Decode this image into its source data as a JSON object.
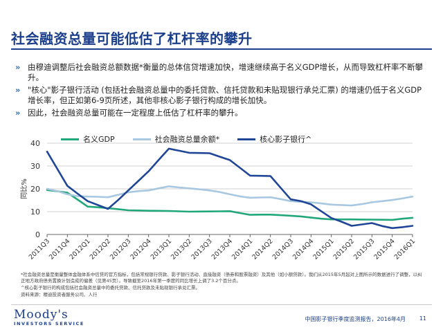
{
  "page": {
    "title": "社会融资总量可能低估了杠杆率的攀升",
    "bullets": [
      "由穆迪调整后社会融资总额数据*衡量的总体信贷增速加快，增速继续高于名义GDP增长，从而导致杠杆率不断攀升。",
      "\"核心\"影子银行活动 (包括社会融资总量中的委托贷款、信托贷款和未贴现银行承兑汇票) 的增速仍低于名义GDP增长率，但正如第6-9页所述，其他非核心影子银行构成的增长加快。",
      "因此，社会融资总量可能在一定程度上低估了杠杆率的攀升。"
    ],
    "bullet_mark": "»",
    "notes": [
      "*社会融资总量是衡量整体金融体系中信贷的官方指标，包括常规银行贷款、影子银行活动、直接融资（债券和股票融资）及其他（如小额贷款）。我们从2015年5月起对上图所示的数据进行了调整，以纠正地方政府债务置换计划造成的偏差（见第45页）。导致截至2016年第一季度的同比增长上调了3.2个百分点。",
      "^核心影子银行的构成包括社会融资总量中的委托贷款、信托贷款及未贴现银行承兑汇票。",
      "资料来源：穆迪投资者服务公司、人行"
    ],
    "footer": {
      "logo_line1": "Moody's",
      "logo_line2": "INVESTORS SERVICE",
      "report": "中国影子银行季度监测报告，2016年4月",
      "page_number": "11"
    }
  },
  "chart_data": {
    "type": "line",
    "title": "",
    "xlabel": "",
    "ylabel": "同比%",
    "ylim": [
      0,
      40
    ],
    "yticks": [
      0,
      10,
      20,
      30,
      40
    ],
    "grid": true,
    "legend_position": "top",
    "categories": [
      "2011Q3",
      "2011Q4",
      "2012Q1",
      "2012Q2",
      "2012Q3",
      "2012Q4",
      "2013Q1",
      "2013Q2",
      "2013Q3",
      "2013Q4",
      "2014Q1",
      "2014Q2",
      "2014Q3",
      "2014Q4",
      "2015Q1",
      "2015Q2",
      "2015Q3",
      "2015Q4",
      "2016Q1"
    ],
    "x": [
      0,
      0.5,
      1,
      1.5,
      2,
      2.5,
      3,
      3.5,
      4,
      4.5,
      5,
      5.5,
      6,
      6.5,
      7,
      7.5,
      8,
      8.5,
      9,
      9.5,
      10,
      10.5,
      11,
      11.5,
      12,
      12.5,
      13,
      13.5,
      14,
      14.5,
      15,
      15.5,
      16,
      16.5,
      17,
      17.5,
      18
    ],
    "series": [
      {
        "name": "名义GDP",
        "color": "#22a77a",
        "values": [
          19.5,
          18.9,
          18.3,
          15.3,
          12.2,
          11.9,
          11.5,
          11.1,
          10.6,
          10.5,
          10.4,
          10.35,
          10.3,
          10.15,
          10.0,
          10.05,
          10.1,
          10.15,
          10.2,
          9.4,
          8.6,
          8.7,
          8.7,
          8.45,
          8.2,
          7.9,
          7.4,
          6.9,
          6.6,
          6.6,
          6.6,
          6.55,
          6.5,
          6.45,
          6.4,
          6.9,
          7.3
        ]
      },
      {
        "name": "社会融资总量余额*",
        "color": "#a8c7e0",
        "values": [
          20.0,
          19.0,
          17.6,
          16.8,
          16.6,
          16.5,
          16.3,
          17.4,
          18.5,
          19.0,
          19.3,
          20.2,
          21.1,
          20.6,
          20.2,
          19.8,
          19.3,
          18.6,
          17.6,
          16.7,
          16.1,
          16.2,
          16.3,
          15.5,
          14.6,
          14.3,
          14.1,
          13.6,
          13.1,
          12.9,
          12.7,
          13.3,
          14.1,
          14.6,
          15.1,
          15.8,
          16.6
        ]
      },
      {
        "name": "核心影子银行^",
        "color": "#1f4596",
        "values": [
          36.3,
          28.8,
          21.3,
          17.9,
          14.6,
          12.9,
          11.2,
          15.1,
          19.3,
          23.5,
          27.7,
          32.7,
          37.6,
          36.7,
          35.8,
          35.7,
          35.6,
          34.1,
          32.6,
          29.2,
          25.8,
          25.7,
          25.6,
          20.5,
          15.4,
          14.6,
          13.2,
          10.2,
          7.2,
          5.6,
          3.8,
          4.4,
          5.0,
          3.7,
          2.8,
          3.2,
          3.8
        ]
      }
    ]
  }
}
